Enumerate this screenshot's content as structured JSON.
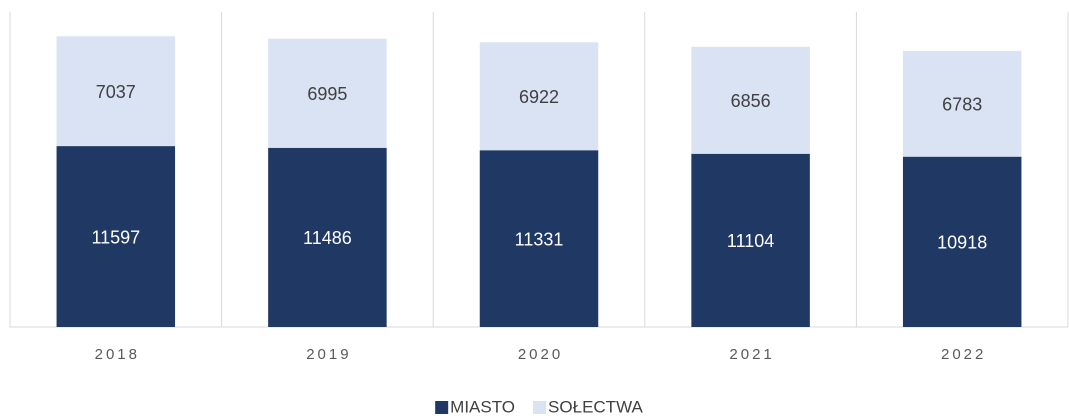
{
  "chart_data": {
    "type": "stacked_bar",
    "categories": [
      "2018",
      "2019",
      "2020",
      "2021",
      "2022"
    ],
    "series": [
      {
        "name": "MIASTO",
        "color": "#203864",
        "values": [
          11597,
          11486,
          11331,
          11104,
          10918
        ]
      },
      {
        "name": "SOŁECTWA",
        "color": "#dae3f3",
        "values": [
          7037,
          6995,
          6922,
          6856,
          6783
        ]
      }
    ],
    "ylim": [
      0,
      20000
    ],
    "legend": "bottom"
  }
}
